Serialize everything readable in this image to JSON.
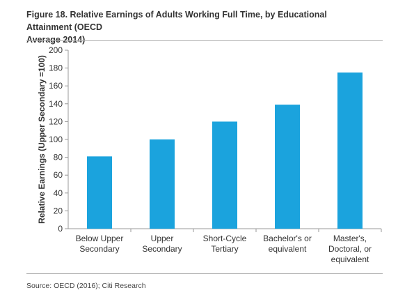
{
  "figure": {
    "title_line1": "Figure 18. Relative Earnings of Adults Working Full Time, by Educational Attainment (OECD",
    "title_line2": "Average 2014)",
    "source": "Source: OECD (2016); Citi Research"
  },
  "colors": {
    "bar": "#1ba3dd",
    "axis": "#999999",
    "text": "#333333"
  },
  "chart_data": {
    "type": "bar",
    "title": "Figure 18. Relative Earnings of Adults Working Full Time, by Educational Attainment (OECD Average 2014)",
    "xlabel": "",
    "ylabel": "Relative Earnings (Upper Secondary =100)",
    "ylim": [
      0,
      200
    ],
    "yticks": [
      0,
      20,
      40,
      60,
      80,
      100,
      120,
      140,
      160,
      180,
      200
    ],
    "grid": false,
    "categories": [
      [
        "Below Upper",
        "Secondary"
      ],
      [
        "Upper",
        "Secondary"
      ],
      [
        "Short-Cycle",
        "Tertiary"
      ],
      [
        "Bachelor's or",
        "equivalent"
      ],
      [
        "Master's,",
        "Doctoral, or",
        "equivalent"
      ]
    ],
    "values": [
      81,
      100,
      120,
      139,
      175
    ]
  }
}
